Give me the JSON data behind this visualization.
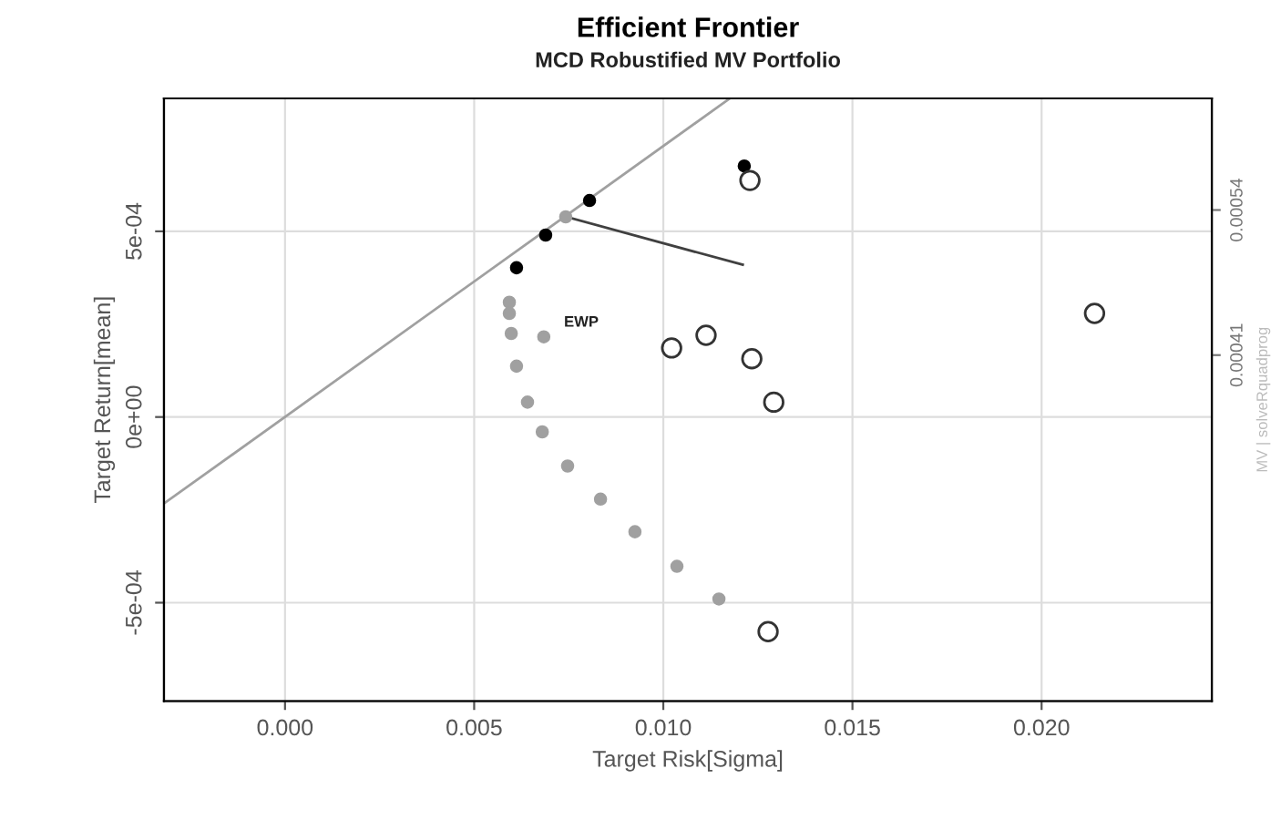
{
  "chart_data": {
    "type": "scatter",
    "title": "Efficient Frontier",
    "subtitle": "MCD Robustified MV Portfolio",
    "xlabel": "Target Risk[Sigma]",
    "ylabel": "Target Return[mean]",
    "y2label": "MV | solveRquadprog",
    "xlim": [
      -0.0032,
      0.0245
    ],
    "xticks": [
      {
        "value": 0.0,
        "label": "0.000"
      },
      {
        "value": 0.005,
        "label": "0.005"
      },
      {
        "value": 0.01,
        "label": "0.010"
      },
      {
        "value": 0.015,
        "label": "0.015"
      },
      {
        "value": 0.02,
        "label": "0.020"
      }
    ],
    "ylim": [
      -0.000765,
      0.000858
    ],
    "yticks": [
      {
        "value": -0.0005,
        "label": "-5e-04"
      },
      {
        "value": 0.0,
        "label": "0e+00"
      },
      {
        "value": 0.0005,
        "label": "5e-04"
      }
    ],
    "y2lim": [
      0.0001,
      0.00064
    ],
    "y2ticks": [
      0.00041,
      0.00054
    ],
    "grid": true,
    "series": [
      {
        "type": "line",
        "marker": "none",
        "color": "#a0a0a0",
        "x": [
          -0.0032,
          0.01176
        ],
        "values": [
          -0.000233,
          0.000858
        ]
      },
      {
        "type": "line",
        "marker": "none",
        "color": "#404040",
        "x": [
          0.0074,
          0.0121
        ],
        "values": [
          0.00054,
          0.00041
        ]
      },
      {
        "marker": "circle",
        "color": "#a0a0a0",
        "x": [
          0.00593,
          0.00593,
          0.00598,
          0.00612,
          0.00641,
          0.0068,
          0.00747,
          0.00834,
          0.00925,
          0.01036,
          0.01147,
          0.00742
        ],
        "values": [
          0.000309,
          0.000279,
          0.000225,
          0.000137,
          4e-05,
          -4e-05,
          -0.000132,
          -0.000221,
          -0.000309,
          -0.000402,
          -0.00049,
          0.000539
        ]
      },
      {
        "marker": "circle",
        "color": "#a0a0a0",
        "x": [
          0.00684
        ],
        "values": [
          0.000216
        ]
      },
      {
        "marker": "circle",
        "color": "#000000",
        "x": [
          0.00612,
          0.00689,
          0.00805,
          0.01214
        ],
        "values": [
          0.000402,
          0.00049,
          0.000583,
          0.000676
        ]
      },
      {
        "marker": "circle",
        "color": "#333333",
        "x": [
          0.01229,
          0.01022,
          0.01113,
          0.01234,
          0.01292,
          0.0214,
          0.01277
        ],
        "values": [
          0.000637,
          0.000186,
          0.00022,
          0.000157,
          4e-05,
          0.000279,
          -0.000578
        ]
      }
    ],
    "annotations": [
      {
        "text": "EWP",
        "x": 0.00684,
        "y": 0.000216
      }
    ]
  }
}
